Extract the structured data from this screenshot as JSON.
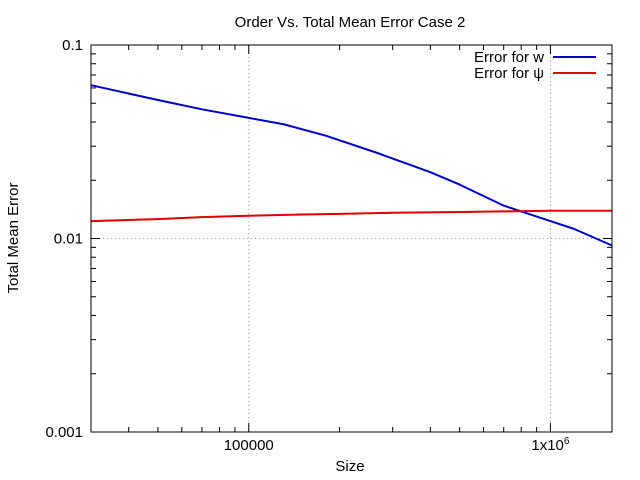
{
  "chart_data": {
    "type": "line",
    "title": "Order Vs. Total Mean Error Case 2",
    "xlabel": "Size",
    "ylabel": "Total Mean Error",
    "xscale": "log",
    "yscale": "log",
    "xlim": [
      30000,
      1600000
    ],
    "ylim": [
      0.001,
      0.1
    ],
    "grid": true,
    "legend_position": "top-right",
    "x_ticks": [
      {
        "value": 100000,
        "label": "100000"
      },
      {
        "value": 1000000,
        "label": "1x10",
        "sup": "6"
      }
    ],
    "y_ticks": [
      {
        "value": 0.1,
        "label": "0.1"
      },
      {
        "value": 0.01,
        "label": "0.01"
      },
      {
        "value": 0.001,
        "label": "0.001"
      }
    ],
    "series": [
      {
        "name": "Error for w",
        "color": "#0000cc",
        "points": [
          [
            30000,
            0.062
          ],
          [
            50000,
            0.052
          ],
          [
            70000,
            0.0465
          ],
          [
            100000,
            0.042
          ],
          [
            130000,
            0.039
          ],
          [
            180000,
            0.034
          ],
          [
            270000,
            0.0275
          ],
          [
            400000,
            0.022
          ],
          [
            500000,
            0.019
          ],
          [
            700000,
            0.0148
          ],
          [
            1000000,
            0.0123
          ],
          [
            1200000,
            0.0112
          ],
          [
            1600000,
            0.0092
          ]
        ]
      },
      {
        "name": "Error for ψ",
        "color": "#e00000",
        "points": [
          [
            30000,
            0.0123
          ],
          [
            50000,
            0.0126
          ],
          [
            70000,
            0.0129
          ],
          [
            100000,
            0.0131
          ],
          [
            150000,
            0.0133
          ],
          [
            200000,
            0.0134
          ],
          [
            300000,
            0.0136
          ],
          [
            500000,
            0.0137
          ],
          [
            700000,
            0.0138
          ],
          [
            1000000,
            0.0139
          ],
          [
            1600000,
            0.0139
          ]
        ]
      }
    ]
  }
}
